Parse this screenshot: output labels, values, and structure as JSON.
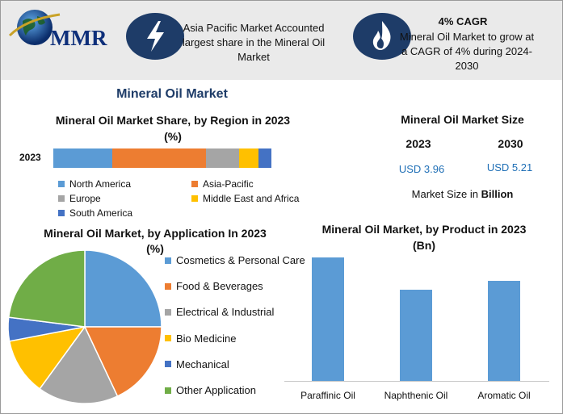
{
  "logo": {
    "text": "MMR"
  },
  "callouts": {
    "region": {
      "text": "Asia Pacific Market Accounted largest share in the Mineral Oil Market",
      "icon": "lightning-bolt-icon"
    },
    "cagr": {
      "title": "4% CAGR",
      "text": "Mineral Oil Market to grow at a CAGR of 4% during 2024-2030",
      "icon": "flame-icon"
    }
  },
  "main_title": "Mineral Oil Market",
  "market_size": {
    "title": "Mineral Oil Market Size",
    "years": [
      "2023",
      "2030"
    ],
    "values": [
      "USD 3.96",
      "USD 5.21"
    ],
    "note_prefix": "Market Size in ",
    "note_bold": "Billion"
  },
  "colors": {
    "blue": "#5B9BD5",
    "orange": "#ED7D31",
    "gray": "#A5A5A5",
    "yellow": "#FFC000",
    "darkblue": "#4472C4",
    "green": "#70AD47",
    "navy": "#1e3c68",
    "value_blue": "#1f6fb6"
  },
  "chart_data": [
    {
      "type": "bar",
      "orientation": "horizontal-stacked",
      "title": "Mineral Oil Market Share, by Region in 2023",
      "title_unit": "(%)",
      "categories": [
        "2023"
      ],
      "series": [
        {
          "name": "North America",
          "values": [
            27
          ]
        },
        {
          "name": "Asia-Pacific",
          "values": [
            43
          ]
        },
        {
          "name": "Europe",
          "values": [
            15
          ]
        },
        {
          "name": "Middle East and Africa",
          "values": [
            9
          ]
        },
        {
          "name": "South America",
          "values": [
            6
          ]
        }
      ],
      "legend_position": "bottom"
    },
    {
      "type": "pie",
      "title": "Mineral Oil Market, by Application In 2023",
      "title_unit": "(%)",
      "labels": [
        "Cosmetics & Personal Care",
        "Food & Beverages",
        "Electrical & Industrial",
        "Bio Medicine",
        "Mechanical",
        "Other Application"
      ],
      "values": [
        25,
        18,
        17,
        12,
        5,
        23
      ],
      "legend_position": "right"
    },
    {
      "type": "bar",
      "title": "Mineral Oil Market, by Product in 2023",
      "title_unit": "(Bn)",
      "categories": [
        "Paraffinic Oil",
        "Naphthenic Oil",
        "Aromatic Oil"
      ],
      "values": [
        1.48,
        1.1,
        1.2
      ],
      "ylim": [
        0,
        1.6
      ],
      "grid": false
    }
  ]
}
